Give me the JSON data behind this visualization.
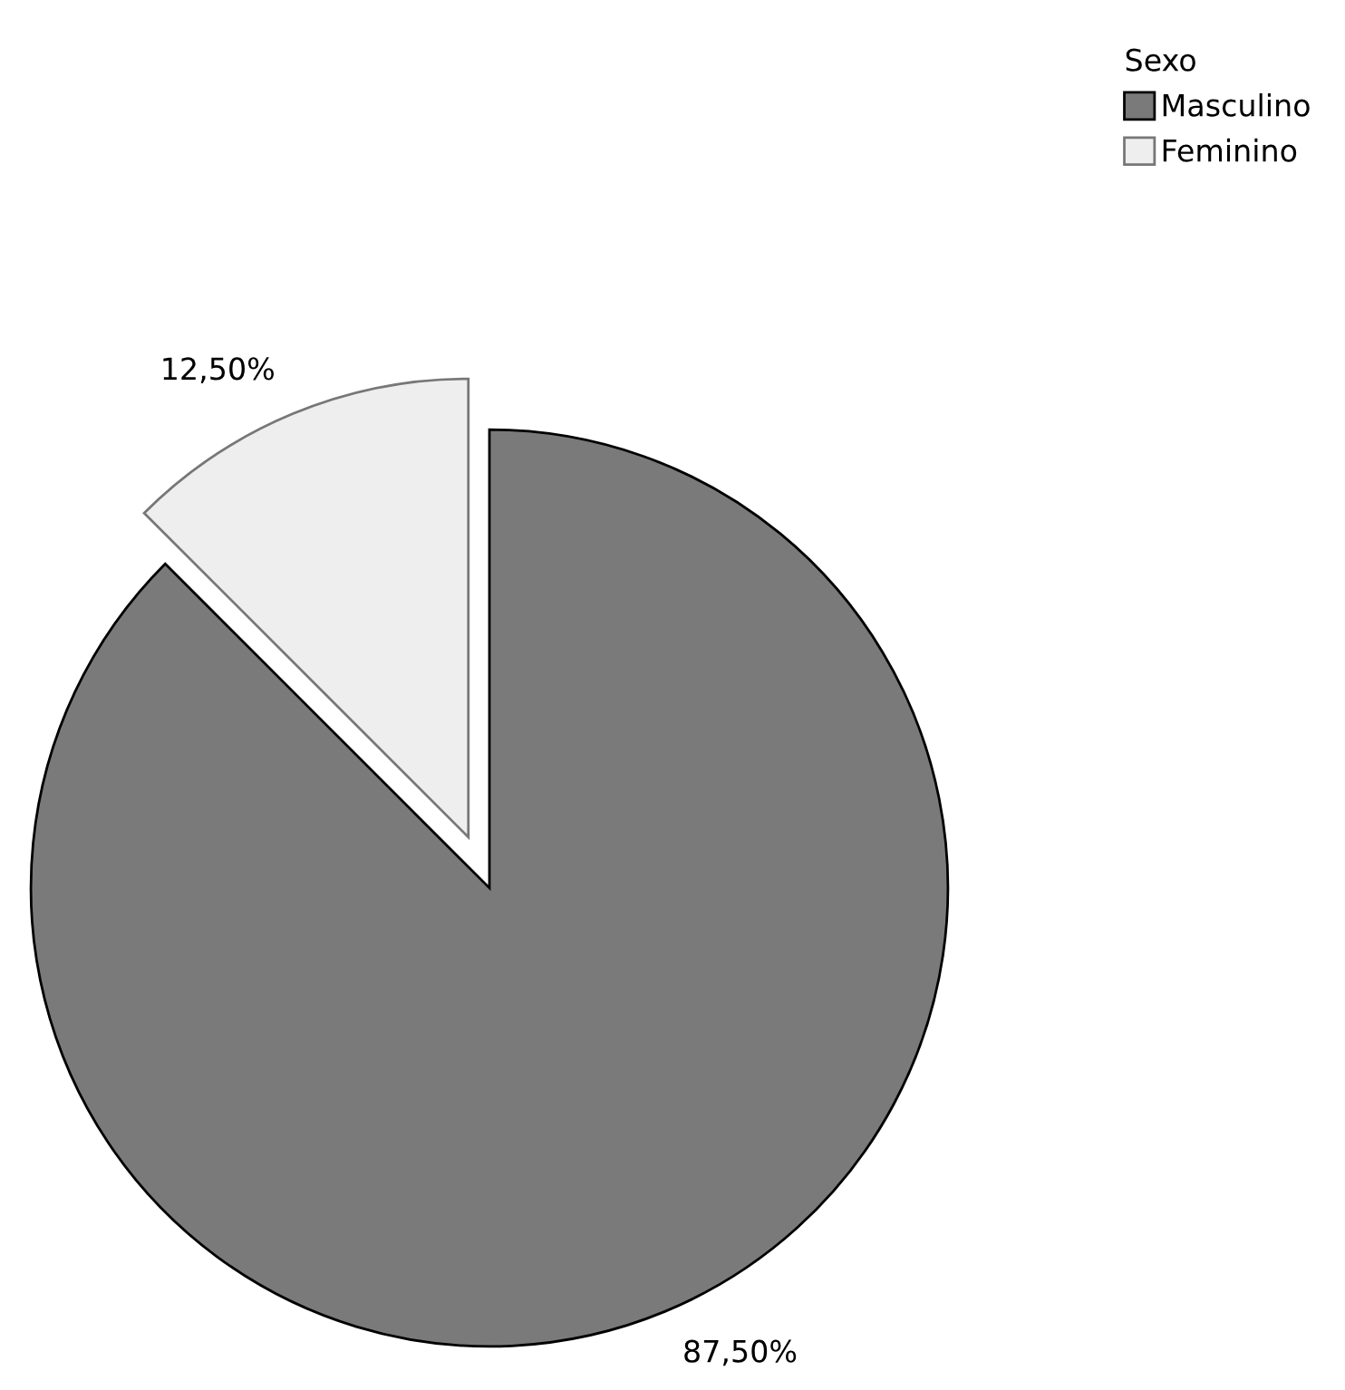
{
  "chart_data": {
    "type": "pie",
    "legend_title": "Sexo",
    "categories": [
      "Masculino",
      "Feminino"
    ],
    "values": [
      87.5,
      12.5
    ],
    "value_labels": [
      "87,50%",
      "12,50%"
    ],
    "colors": [
      "#7a7a7a",
      "#eeeeee"
    ],
    "legend": "top right"
  }
}
